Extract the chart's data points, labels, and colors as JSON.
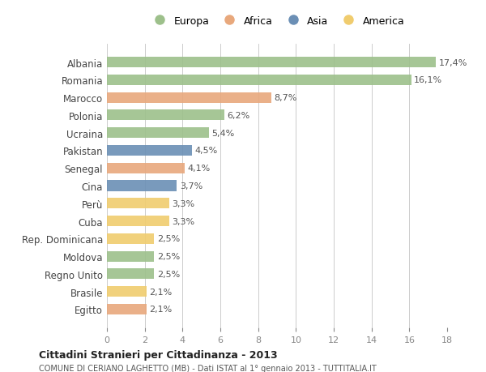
{
  "countries": [
    "Albania",
    "Romania",
    "Marocco",
    "Polonia",
    "Ucraina",
    "Pakistan",
    "Senegal",
    "Cina",
    "Perù",
    "Cuba",
    "Rep. Dominicana",
    "Moldova",
    "Regno Unito",
    "Brasile",
    "Egitto"
  ],
  "values": [
    17.4,
    16.1,
    8.7,
    6.2,
    5.4,
    4.5,
    4.1,
    3.7,
    3.3,
    3.3,
    2.5,
    2.5,
    2.5,
    2.1,
    2.1
  ],
  "labels": [
    "17,4%",
    "16,1%",
    "8,7%",
    "6,2%",
    "5,4%",
    "4,5%",
    "4,1%",
    "3,7%",
    "3,3%",
    "3,3%",
    "2,5%",
    "2,5%",
    "2,5%",
    "2,1%",
    "2,1%"
  ],
  "categories": [
    "Europa",
    "Europa",
    "Africa",
    "Europa",
    "Europa",
    "Asia",
    "Africa",
    "Asia",
    "America",
    "America",
    "America",
    "Europa",
    "Europa",
    "America",
    "Africa"
  ],
  "colors": {
    "Europa": "#9DC08B",
    "Africa": "#E8A87C",
    "Asia": "#6B8FB5",
    "America": "#F0CC6E"
  },
  "legend_order": [
    "Europa",
    "Africa",
    "Asia",
    "America"
  ],
  "title1": "Cittadini Stranieri per Cittadinanza - 2013",
  "title2": "COMUNE DI CERIANO LAGHETTO (MB) - Dati ISTAT al 1° gennaio 2013 - TUTTITALIA.IT",
  "xlim": [
    0,
    18
  ],
  "xticks": [
    0,
    2,
    4,
    6,
    8,
    10,
    12,
    14,
    16,
    18
  ],
  "bg_color": "#FFFFFF",
  "grid_color": "#CCCCCC"
}
